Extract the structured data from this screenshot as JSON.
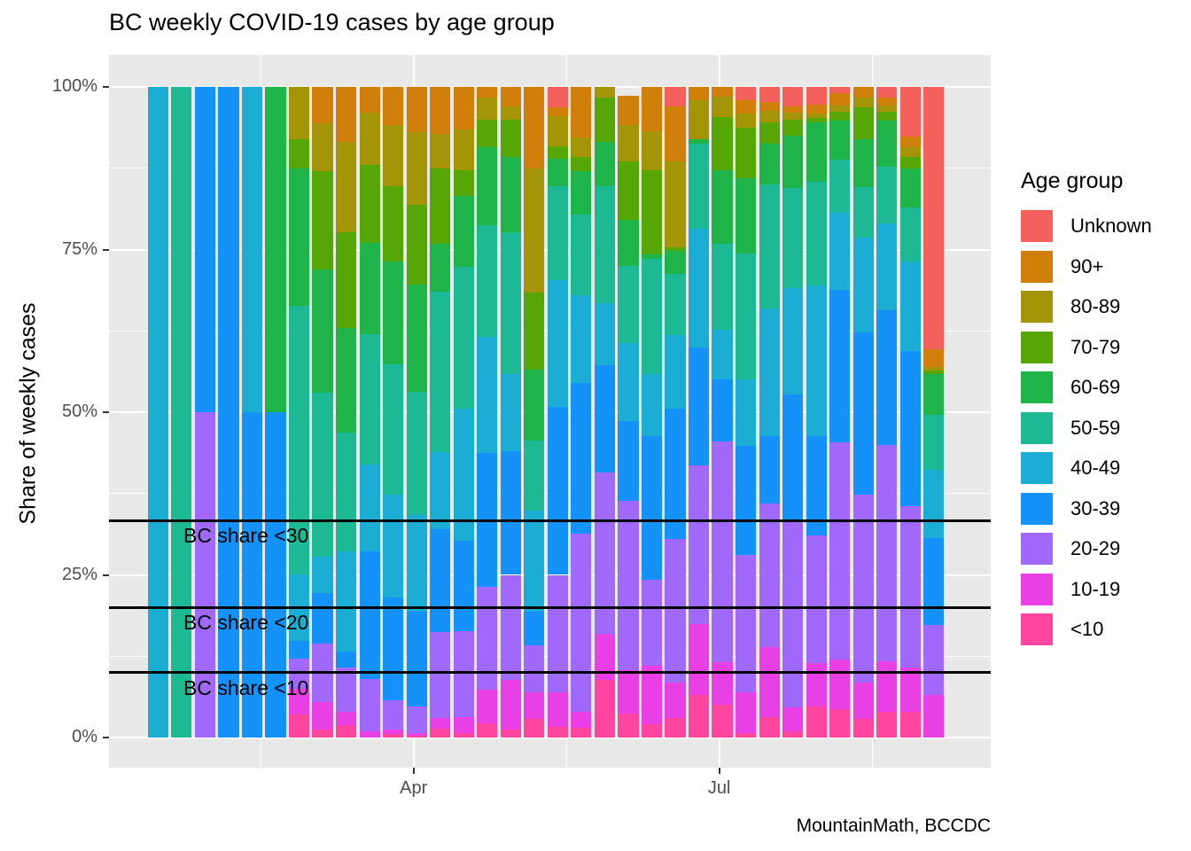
{
  "title": "BC weekly COVID-19 cases by age group",
  "y_axis": {
    "label": "Share of weekly cases",
    "ticks": [
      {
        "label": "0%",
        "pct": 0
      },
      {
        "label": "25%",
        "pct": 25
      },
      {
        "label": "50%",
        "pct": 50
      },
      {
        "label": "75%",
        "pct": 75
      },
      {
        "label": "100%",
        "pct": 100
      }
    ]
  },
  "x_axis": {
    "ticks": [
      {
        "label": "Apr",
        "week_index": 10.87
      },
      {
        "label": "Jul",
        "week_index": 23.87
      }
    ]
  },
  "caption": "MountainMath, BCCDC",
  "legend": {
    "title": "Age group",
    "items": [
      {
        "label": "Unknown",
        "color": "#F4615C"
      },
      {
        "label": "90+",
        "color": "#D0800A"
      },
      {
        "label": "80-89",
        "color": "#A39408"
      },
      {
        "label": "70-79",
        "color": "#56A606"
      },
      {
        "label": "60-69",
        "color": "#1EB449"
      },
      {
        "label": "50-59",
        "color": "#1DB894"
      },
      {
        "label": "40-49",
        "color": "#1CADD4"
      },
      {
        "label": "30-39",
        "color": "#1592F8"
      },
      {
        "label": "20-29",
        "color": "#A069FA"
      },
      {
        "label": "10-19",
        "color": "#E840E4"
      },
      {
        "label": "<10",
        "color": "#FF45A0"
      }
    ]
  },
  "ref_lines": [
    {
      "label": "BC share <30",
      "pct": 33.33
    },
    {
      "label": "BC share <20",
      "pct": 20
    },
    {
      "label": "BC share <10",
      "pct": 10
    }
  ],
  "chart_data": {
    "type": "bar",
    "stacked": true,
    "title": "BC weekly COVID-19 cases by age group",
    "ylabel": "Share of weekly cases",
    "ylim": [
      0,
      100
    ],
    "grid": true,
    "legend_position": "right",
    "x": [
      1,
      2,
      3,
      4,
      5,
      6,
      7,
      8,
      9,
      10,
      11,
      12,
      13,
      14,
      15,
      16,
      17,
      18,
      19,
      20,
      21,
      22,
      23,
      24,
      25,
      26,
      27,
      28,
      29,
      30,
      31,
      32,
      33,
      34
    ],
    "x_unit": "week",
    "series": [
      {
        "name": "<10",
        "color": "#FF45A0",
        "values": [
          0,
          0,
          0,
          0,
          0,
          0,
          3.5,
          1.2,
          1.9,
          0,
          0.5,
          0.3,
          1.4,
          0.7,
          2.2,
          1.2,
          2.9,
          1.6,
          1.5,
          8.9,
          3.7,
          2.1,
          3,
          6.6,
          5,
          0.7,
          3.2,
          1,
          4.8,
          4.3,
          2.9,
          4,
          4,
          0
        ]
      },
      {
        "name": "10-19",
        "color": "#E840E4",
        "values": [
          0,
          0,
          0,
          0,
          0,
          0,
          4,
          4.2,
          2.1,
          1,
          0.7,
          0.4,
          1.6,
          2.4,
          5.2,
          7.7,
          4.1,
          5.4,
          2.4,
          7.1,
          6.6,
          8.9,
          5.5,
          10.9,
          6.6,
          6.2,
          10.7,
          3.6,
          6.6,
          7.7,
          5.6,
          7.7,
          6.7,
          6.5
        ]
      },
      {
        "name": "20-29",
        "color": "#A069FA",
        "values": [
          0,
          0,
          50,
          0,
          0,
          0,
          4.6,
          9.1,
          6.7,
          8,
          4.5,
          4.1,
          13.2,
          13.2,
          15.7,
          16.1,
          7.2,
          18,
          27.5,
          24.7,
          26.1,
          13.3,
          22,
          24.3,
          33.9,
          21.1,
          22.1,
          28.8,
          19.6,
          33.3,
          28.8,
          33.3,
          24.9,
          10.8
        ]
      },
      {
        "name": "30-39",
        "color": "#1592F8",
        "values": [
          0,
          0,
          50,
          100,
          50,
          50,
          2.8,
          7.7,
          2.5,
          19.6,
          15.8,
          14.6,
          15.8,
          13.9,
          20.6,
          19,
          5.1,
          25.8,
          23.1,
          16.5,
          12.3,
          22,
          20,
          18.2,
          9.5,
          16.8,
          10.3,
          19.3,
          15.3,
          23.5,
          24.9,
          20.7,
          23.8,
          13.4
        ]
      },
      {
        "name": "40-49",
        "color": "#1CADD4",
        "values": [
          100,
          0,
          0,
          0,
          50,
          0,
          10.2,
          5.6,
          15.4,
          13.3,
          15.8,
          14.8,
          11.9,
          20.4,
          17.9,
          11.9,
          15.6,
          19.5,
          13.5,
          9.5,
          11.9,
          9.6,
          11.3,
          18.2,
          7.7,
          10.2,
          19.6,
          16.4,
          23.2,
          11.9,
          14.7,
          13.3,
          13.7,
          10.5
        ]
      },
      {
        "name": "50-59",
        "color": "#1DB894",
        "values": [
          0,
          100,
          0,
          0,
          0,
          0,
          41.3,
          25.2,
          18.2,
          20.1,
          20,
          18.9,
          24.6,
          21.8,
          17.2,
          21.8,
          10.8,
          14.4,
          12.4,
          18,
          11.9,
          17.7,
          9.4,
          13.1,
          13.2,
          19.4,
          19.1,
          15.4,
          15.9,
          8.1,
          7.7,
          8.8,
          8.4,
          8.4
        ]
      },
      {
        "name": "60-69",
        "color": "#1EB449",
        "values": [
          0,
          0,
          0,
          0,
          0,
          50,
          21,
          18.9,
          16.1,
          14,
          15.8,
          16.5,
          7.4,
          10.9,
          11.9,
          11.6,
          10.9,
          4.2,
          6.6,
          6.8,
          7,
          0.7,
          3.6,
          0.7,
          11.3,
          11.6,
          6.3,
          8,
          9.2,
          6,
          7.4,
          7,
          6,
          6.3
        ]
      },
      {
        "name": "70-79",
        "color": "#56A606",
        "values": [
          0,
          0,
          0,
          0,
          0,
          0,
          4.6,
          15.1,
          14.7,
          12,
          11.6,
          12.3,
          11.6,
          3.9,
          4.2,
          5.6,
          11.8,
          2,
          2.2,
          6.9,
          9.1,
          12.9,
          0.5,
          0,
          8.2,
          7.7,
          3.3,
          2.5,
          0.6,
          1.4,
          4.9,
          1.4,
          1.8,
          0.5
        ]
      },
      {
        "name": "80-89",
        "color": "#A39408",
        "values": [
          0,
          0,
          0,
          0,
          0,
          0,
          8,
          7.4,
          14,
          8,
          9.5,
          11.2,
          5.3,
          6.3,
          3.5,
          2.1,
          19.1,
          4.6,
          3,
          1.6,
          5.6,
          6,
          13.3,
          6,
          3.1,
          2.2,
          1.7,
          1.1,
          0.7,
          1,
          1.4,
          1,
          1.4,
          0.5
        ]
      },
      {
        "name": "90+",
        "color": "#D0800A",
        "values": [
          0,
          0,
          0,
          0,
          0,
          0,
          0,
          5.6,
          8.4,
          4,
          5.8,
          6.9,
          7.2,
          6.5,
          1.6,
          3,
          12.5,
          1.4,
          7.8,
          0,
          4.5,
          6.8,
          8.4,
          2,
          1.5,
          2.1,
          1.4,
          0.9,
          1.4,
          1.8,
          1.7,
          1.2,
          1.7,
          2.8
        ]
      },
      {
        "name": "Unknown",
        "color": "#F4615C",
        "values": [
          0,
          0,
          0,
          0,
          0,
          0,
          0,
          0,
          0,
          0,
          0,
          0,
          0,
          0,
          0,
          0,
          0,
          3.1,
          0,
          0,
          0,
          0,
          3,
          0,
          0,
          2,
          2.3,
          3,
          2.7,
          1,
          0,
          1.6,
          7.6,
          40.3
        ]
      }
    ]
  }
}
